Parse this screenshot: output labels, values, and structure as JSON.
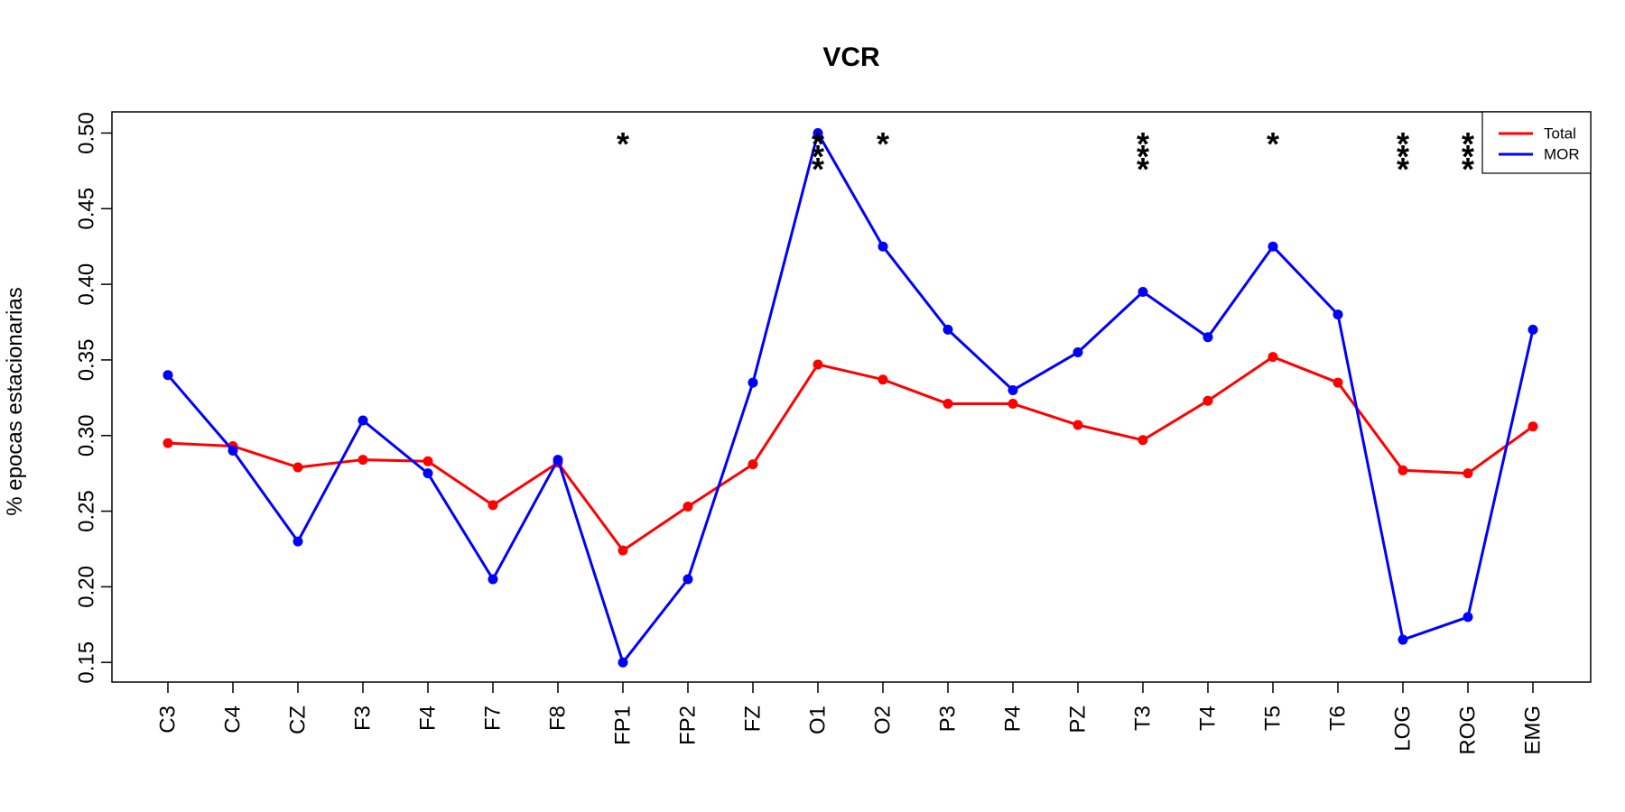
{
  "chart_data": {
    "type": "line",
    "title": "VCR",
    "xlabel": "",
    "ylabel": "% epocas estacionarias",
    "categories": [
      "C3",
      "C4",
      "CZ",
      "F3",
      "F4",
      "F7",
      "F8",
      "FP1",
      "FP2",
      "FZ",
      "O1",
      "O2",
      "P3",
      "P4",
      "PZ",
      "T3",
      "T4",
      "T5",
      "T6",
      "LOG",
      "ROG",
      "EMG"
    ],
    "ylim": [
      0.137,
      0.514
    ],
    "yticks": [
      "0.15",
      "0.20",
      "0.25",
      "0.30",
      "0.35",
      "0.40",
      "0.45",
      "0.50"
    ],
    "legend_position": "top-right",
    "grid": false,
    "series": [
      {
        "name": "Total",
        "color": "#ff0000",
        "values": [
          0.295,
          0.293,
          0.279,
          0.284,
          0.283,
          0.254,
          0.282,
          0.224,
          0.253,
          0.281,
          0.347,
          0.337,
          0.321,
          0.321,
          0.307,
          0.297,
          0.323,
          0.352,
          0.335,
          0.277,
          0.275,
          0.306
        ]
      },
      {
        "name": "MOR",
        "color": "#0000ff",
        "values": [
          0.34,
          0.29,
          0.23,
          0.31,
          0.275,
          0.205,
          0.284,
          0.15,
          0.205,
          0.335,
          0.5,
          0.425,
          0.37,
          0.33,
          0.355,
          0.395,
          0.365,
          0.425,
          0.38,
          0.165,
          0.18,
          0.37
        ]
      }
    ],
    "significance": [
      {
        "category": "FP1",
        "mark": "*"
      },
      {
        "category": "O1",
        "mark": "***"
      },
      {
        "category": "O2",
        "mark": "*"
      },
      {
        "category": "T3",
        "mark": "***"
      },
      {
        "category": "T5",
        "mark": "*"
      },
      {
        "category": "LOG",
        "mark": "***"
      },
      {
        "category": "ROG",
        "mark": "***"
      }
    ]
  }
}
